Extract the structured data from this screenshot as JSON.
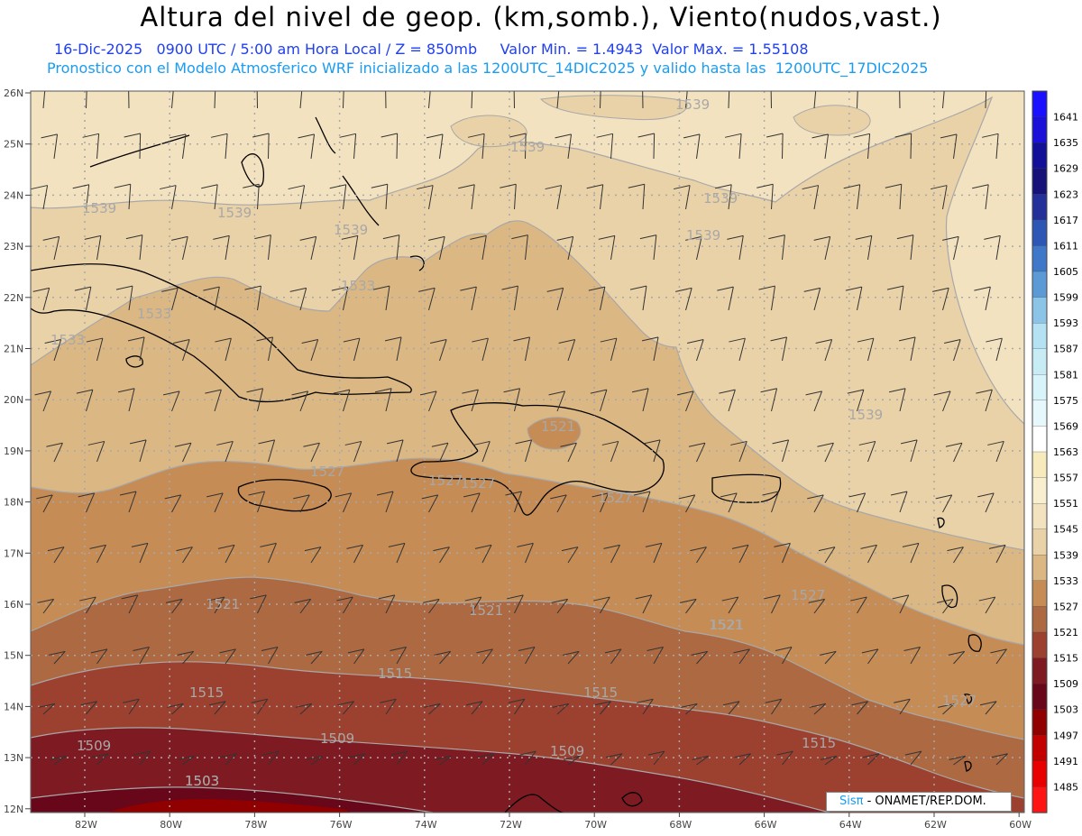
{
  "title": "Altura del nivel de geop. (km,somb.), Viento(nudos,vast.)",
  "subtitle": "16-Dic-2025   0900 UTC / 5:00 am Hora Local / Z = 850mb     Valor Min. = 1.4943  Valor Max. = 1.55108",
  "subtitle2": "Pronostico con el Modelo Atmosferico WRF inicializado a las 1200UTC_14DIC2025 y valido hasta las  1200UTC_17DIC2025",
  "credit": {
    "sis": "Sisπ",
    "rest": "- ONAMET/REP.DOM."
  },
  "lat_labels": [
    "26N",
    "25N",
    "24N",
    "23N",
    "22N",
    "21N",
    "20N",
    "19N",
    "18N",
    "17N",
    "16N",
    "15N",
    "14N",
    "13N",
    "12N"
  ],
  "lon_labels": [
    "82W",
    "80W",
    "78W",
    "76W",
    "74W",
    "72W",
    "70W",
    "68W",
    "66W",
    "64W",
    "62W",
    "60W"
  ],
  "legend": [
    {
      "label": "1641",
      "color": "#1a10ff"
    },
    {
      "label": "1635",
      "color": "#1a10d8"
    },
    {
      "label": "1629",
      "color": "#121098"
    },
    {
      "label": "1623",
      "color": "#16127a"
    },
    {
      "label": "1617",
      "color": "#24309a"
    },
    {
      "label": "1611",
      "color": "#2e56b4"
    },
    {
      "label": "1605",
      "color": "#3f78c8"
    },
    {
      "label": "1599",
      "color": "#5c9ad6"
    },
    {
      "label": "1593",
      "color": "#8cc4e8"
    },
    {
      "label": "1587",
      "color": "#b4e2f2"
    },
    {
      "label": "1581",
      "color": "#c8ecf6"
    },
    {
      "label": "1575",
      "color": "#d8f4fa"
    },
    {
      "label": "1569",
      "color": "#e6f8fc"
    },
    {
      "label": "1563",
      "color": "#ffffff"
    },
    {
      "label": "1557",
      "color": "#f7ebbd"
    },
    {
      "label": "1551",
      "color": "#f8efd0"
    },
    {
      "label": "1545",
      "color": "#f3e2bf"
    },
    {
      "label": "1539",
      "color": "#ead2a8"
    },
    {
      "label": "1533",
      "color": "#dbb784"
    },
    {
      "label": "1527",
      "color": "#c58c56"
    },
    {
      "label": "1521",
      "color": "#ad6a42"
    },
    {
      "label": "1515",
      "color": "#9c4030"
    },
    {
      "label": "1509",
      "color": "#7e1a22"
    },
    {
      "label": "1503",
      "color": "#68061a"
    },
    {
      "label": "1497",
      "color": "#900000"
    },
    {
      "label": "1491",
      "color": "#c20000"
    },
    {
      "label": "1485",
      "color": "#e80000"
    },
    {
      "label": "",
      "color": "#ff1414"
    }
  ],
  "field_labels": [
    "1539",
    "1539",
    "1539",
    "1539",
    "1539",
    "1539",
    "1539",
    "1533",
    "1533",
    "1533",
    "1539",
    "1527",
    "1527",
    "1527",
    "1527",
    "1521",
    "1527",
    "1521",
    "1521",
    "1527",
    "1521",
    "1515",
    "1515",
    "1515",
    "1521",
    "1509",
    "1509",
    "1509",
    "1515",
    "1503",
    "1503"
  ],
  "colors": {
    "bg": "#ffffff",
    "grid": "#a8a8a8",
    "coast": "#000000",
    "contour": "#a8a8a8",
    "barb": "#333333"
  }
}
